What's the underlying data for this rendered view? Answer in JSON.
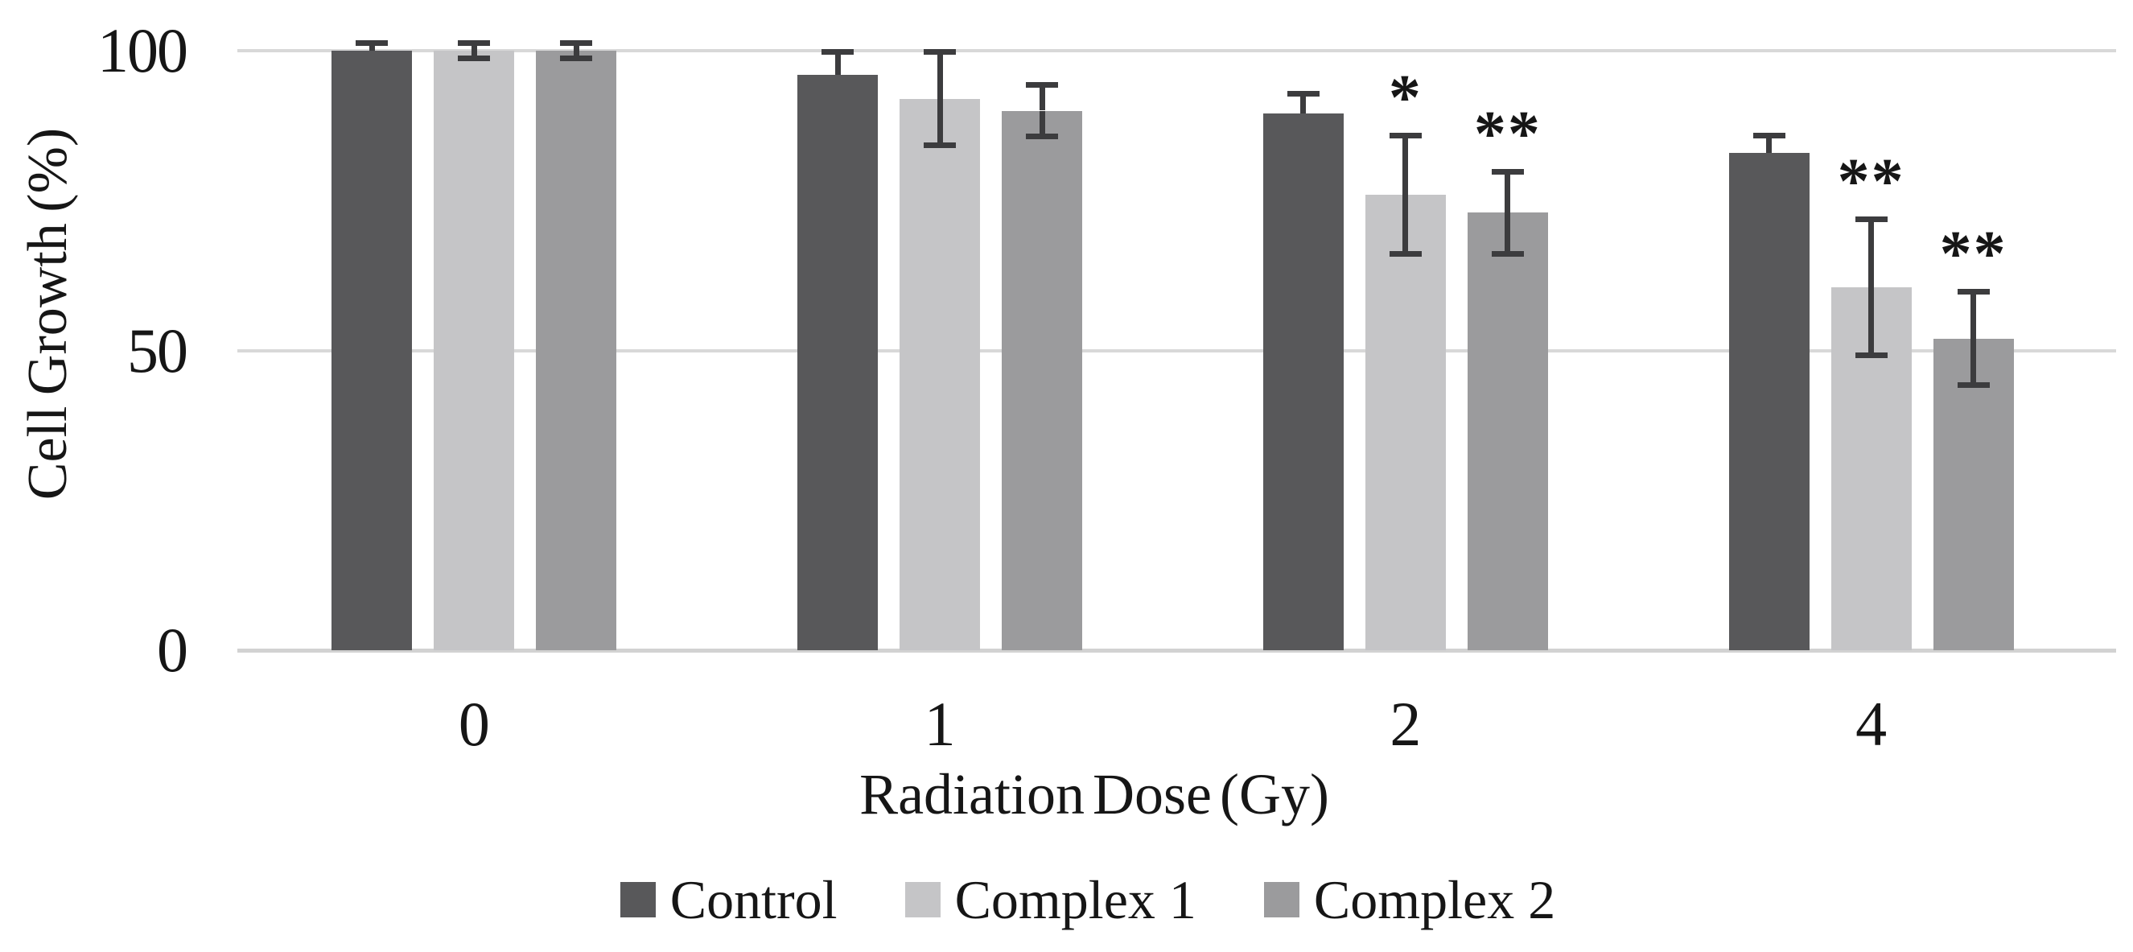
{
  "figure": {
    "background": "#ffffff",
    "text_color": "#161616"
  },
  "chart_data": {
    "type": "bar",
    "title": "",
    "xlabel": "Radiation Dose (Gy)",
    "ylabel": "Cell Growth (%)",
    "categories": [
      "0",
      "1",
      "2",
      "4"
    ],
    "x_axis_note": "grouped bars with error bars; significance markers above some bars",
    "ylim": [
      0,
      100
    ],
    "yticks": [
      0,
      50,
      100
    ],
    "ytick_labels": [
      "0",
      "50",
      "100"
    ],
    "grid": "horizontal",
    "gridline_color": "#d8d8d8",
    "baseline_color": "#d2d2d2",
    "error_bar_color": "#3c3c3e",
    "legend_position": "bottom",
    "series": [
      {
        "name": "Control",
        "color": "#58585a",
        "values": [
          100,
          96,
          89.5,
          83
        ],
        "errors": [
          1,
          3.5,
          3,
          2.5
        ],
        "annotations": [
          "",
          "",
          "",
          ""
        ],
        "lower_whisker_visible": false
      },
      {
        "name": "Complex 1",
        "color": "#c5c5c7",
        "values": [
          100,
          92,
          76,
          60.5
        ],
        "errors": [
          1,
          7.5,
          9.5,
          11
        ],
        "annotations": [
          "",
          "",
          "*",
          "**"
        ],
        "lower_whisker_visible": true
      },
      {
        "name": "Complex 2",
        "color": "#9b9b9d",
        "values": [
          100,
          90,
          73,
          52
        ],
        "errors": [
          1,
          4,
          6.5,
          7.5
        ],
        "annotations": [
          "",
          "",
          "**",
          "**"
        ],
        "lower_whisker_visible": true
      }
    ]
  }
}
